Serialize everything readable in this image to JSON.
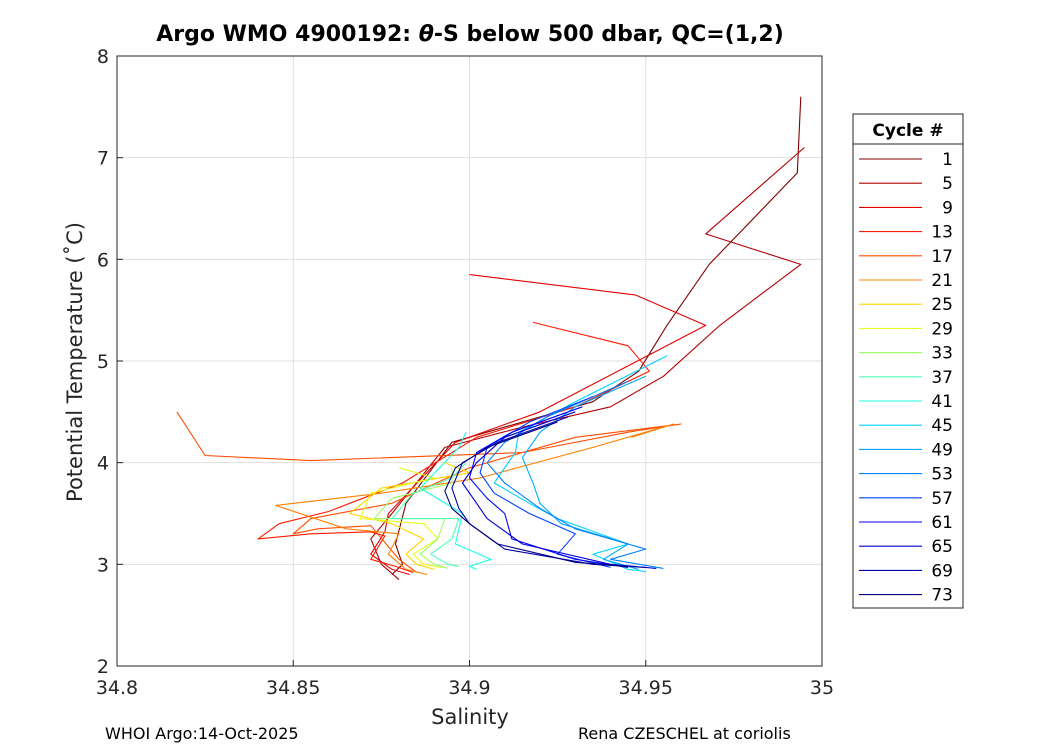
{
  "chart_data": {
    "type": "line",
    "title_prefix": "Argo WMO 4900192: ",
    "title_theta": "θ",
    "title_suffix": "-S below 500 dbar,  QC=(1,2)",
    "xlabel": "Salinity",
    "ylabel": "Potential Temperature (˚C)",
    "xlim": [
      34.8,
      35.0
    ],
    "ylim": [
      2,
      8
    ],
    "xticks": [
      "34.8",
      "34.85",
      "34.9",
      "34.95",
      "35"
    ],
    "xtick_values": [
      34.8,
      34.85,
      34.9,
      34.95,
      35.0
    ],
    "yticks": [
      "2",
      "3",
      "4",
      "5",
      "6",
      "7",
      "8"
    ],
    "ytick_values": [
      2,
      3,
      4,
      5,
      6,
      7,
      8
    ],
    "grid": true,
    "legend": {
      "title": "Cycle #",
      "placement": "right",
      "entries": [
        {
          "label": "1",
          "color": "#800000"
        },
        {
          "label": "5",
          "color": "#b30000"
        },
        {
          "label": "9",
          "color": "#e60000"
        },
        {
          "label": "13",
          "color": "#ff1a00"
        },
        {
          "label": "17",
          "color": "#ff4d00"
        },
        {
          "label": "21",
          "color": "#ff8000"
        },
        {
          "label": "25",
          "color": "#ffd400"
        },
        {
          "label": "29",
          "color": "#e6ff1a"
        },
        {
          "label": "33",
          "color": "#99ff66"
        },
        {
          "label": "37",
          "color": "#4dffb3"
        },
        {
          "label": "41",
          "color": "#1affe6"
        },
        {
          "label": "45",
          "color": "#00d4ff"
        },
        {
          "label": "49",
          "color": "#00aaff"
        },
        {
          "label": "53",
          "color": "#0080ff"
        },
        {
          "label": "57",
          "color": "#0040ff"
        },
        {
          "label": "61",
          "color": "#0000ff"
        },
        {
          "label": "65",
          "color": "#0000d4"
        },
        {
          "label": "69",
          "color": "#0000aa"
        },
        {
          "label": "73",
          "color": "#000080"
        }
      ]
    },
    "series": [
      {
        "name": "1",
        "salinity": [
          34.994,
          34.993,
          34.968,
          34.956,
          34.948,
          34.935,
          34.915,
          34.895,
          34.882,
          34.879,
          34.881,
          34.878
        ],
        "theta": [
          7.6,
          6.85,
          5.95,
          5.35,
          4.9,
          4.6,
          4.4,
          4.2,
          3.6,
          3.2,
          3.0,
          2.9
        ]
      },
      {
        "name": "5",
        "salinity": [
          34.995,
          34.967,
          34.994,
          34.971,
          34.955,
          34.94,
          34.915,
          34.893,
          34.878,
          34.872,
          34.875,
          34.88
        ],
        "theta": [
          7.1,
          6.25,
          5.95,
          5.35,
          4.85,
          4.55,
          4.35,
          4.15,
          3.5,
          3.25,
          3.0,
          2.85
        ]
      },
      {
        "name": "9",
        "salinity": [
          34.9,
          34.947,
          34.967,
          34.92,
          34.896,
          34.877,
          34.876,
          34.872,
          34.878,
          34.883
        ],
        "theta": [
          5.85,
          5.65,
          5.35,
          4.5,
          4.2,
          3.5,
          3.32,
          3.1,
          2.95,
          2.9
        ]
      },
      {
        "name": "13",
        "salinity": [
          34.918,
          34.945,
          34.951,
          34.93,
          34.902,
          34.881,
          34.86,
          34.846,
          34.84,
          34.855,
          34.872,
          34.876,
          34.872,
          34.879,
          34.884
        ],
        "theta": [
          5.38,
          5.15,
          4.9,
          4.55,
          4.25,
          3.8,
          3.52,
          3.4,
          3.25,
          3.3,
          3.32,
          3.28,
          3.05,
          2.98,
          2.92
        ]
      },
      {
        "name": "17",
        "salinity": [
          34.817,
          34.825,
          34.855,
          34.915,
          34.945,
          34.96,
          34.93,
          34.9,
          34.878,
          34.855,
          34.85,
          34.857,
          34.872,
          34.88,
          34.885
        ],
        "theta": [
          4.5,
          4.07,
          4.02,
          4.1,
          4.3,
          4.38,
          4.25,
          3.95,
          3.6,
          3.45,
          3.3,
          3.35,
          3.38,
          3.05,
          2.92
        ]
      },
      {
        "name": "21",
        "salinity": [
          34.946,
          34.958,
          34.935,
          34.903,
          34.875,
          34.845,
          34.865,
          34.88,
          34.877,
          34.882,
          34.888
        ],
        "theta": [
          4.25,
          4.38,
          4.15,
          3.85,
          3.7,
          3.58,
          3.35,
          3.3,
          3.1,
          2.95,
          2.9
        ]
      },
      {
        "name": "25",
        "salinity": [
          34.893,
          34.9,
          34.875,
          34.866,
          34.878,
          34.887,
          34.882,
          34.885,
          34.89
        ],
        "theta": [
          4.0,
          3.9,
          3.75,
          3.5,
          3.4,
          3.25,
          3.1,
          3.0,
          2.95
        ]
      },
      {
        "name": "29",
        "salinity": [
          34.88,
          34.89,
          34.872,
          34.869,
          34.887,
          34.891,
          34.884,
          34.887,
          34.892
        ],
        "theta": [
          3.95,
          3.85,
          3.7,
          3.45,
          3.4,
          3.25,
          3.1,
          3.0,
          2.97
        ]
      },
      {
        "name": "33",
        "salinity": [
          34.895,
          34.895,
          34.878,
          34.873,
          34.893,
          34.891,
          34.886,
          34.89,
          34.894
        ],
        "theta": [
          3.95,
          3.8,
          3.65,
          3.45,
          3.45,
          3.25,
          3.1,
          3.0,
          2.96
        ]
      },
      {
        "name": "37",
        "salinity": [
          34.899,
          34.895,
          34.884,
          34.878,
          34.897,
          34.895,
          34.889,
          34.894,
          34.897
        ],
        "theta": [
          4.0,
          3.85,
          3.7,
          3.45,
          3.45,
          3.25,
          3.1,
          3.0,
          2.98
        ]
      },
      {
        "name": "41",
        "salinity": [
          34.899,
          34.897,
          34.886,
          34.898,
          34.896,
          34.906,
          34.9,
          34.902
        ],
        "theta": [
          4.3,
          4.15,
          3.75,
          3.5,
          3.2,
          3.05,
          2.98,
          2.95
        ]
      },
      {
        "name": "45",
        "salinity": [
          34.956,
          34.93,
          34.914,
          34.913,
          34.907,
          34.917,
          34.925,
          34.945,
          34.935,
          34.945,
          34.95
        ],
        "theta": [
          5.05,
          4.6,
          4.3,
          4.1,
          3.8,
          3.6,
          3.45,
          3.2,
          3.1,
          2.95,
          2.93
        ]
      },
      {
        "name": "49",
        "salinity": [
          34.95,
          34.93,
          34.92,
          34.915,
          34.918,
          34.92,
          34.926,
          34.945,
          34.938,
          34.948
        ],
        "theta": [
          4.85,
          4.55,
          4.3,
          4.05,
          3.8,
          3.6,
          3.4,
          3.2,
          3.05,
          2.95
        ]
      },
      {
        "name": "53",
        "salinity": [
          34.945,
          34.922,
          34.91,
          34.905,
          34.91,
          34.92,
          34.93,
          34.95,
          34.94,
          34.955
        ],
        "theta": [
          4.8,
          4.45,
          4.2,
          4.0,
          3.8,
          3.55,
          3.35,
          3.15,
          3.05,
          2.96
        ]
      },
      {
        "name": "57",
        "salinity": [
          34.935,
          34.917,
          34.905,
          34.903,
          34.907,
          34.917,
          34.93,
          34.925,
          34.94
        ],
        "theta": [
          4.65,
          4.4,
          4.15,
          3.9,
          3.7,
          3.5,
          3.3,
          3.1,
          2.97
        ]
      },
      {
        "name": "61",
        "salinity": [
          34.932,
          34.912,
          34.902,
          34.9,
          34.905,
          34.91,
          34.912,
          34.93,
          34.945
        ],
        "theta": [
          4.55,
          4.3,
          4.1,
          3.85,
          3.65,
          3.5,
          3.25,
          3.05,
          2.97
        ]
      },
      {
        "name": "65",
        "salinity": [
          34.93,
          34.91,
          34.902,
          34.898,
          34.902,
          34.905,
          34.915,
          34.94,
          34.953
        ],
        "theta": [
          4.5,
          4.25,
          4.0,
          3.8,
          3.6,
          3.45,
          3.2,
          3.0,
          2.96
        ]
      },
      {
        "name": "69",
        "salinity": [
          34.928,
          34.908,
          34.898,
          34.895,
          34.897,
          34.9,
          34.91,
          34.935,
          34.95
        ],
        "theta": [
          4.45,
          4.2,
          4.0,
          3.75,
          3.55,
          3.4,
          3.15,
          3.0,
          2.97
        ]
      },
      {
        "name": "73",
        "salinity": [
          34.925,
          34.905,
          34.896,
          34.893,
          34.895,
          34.9,
          34.908,
          34.93,
          34.945
        ],
        "theta": [
          4.4,
          4.15,
          3.95,
          3.72,
          3.55,
          3.4,
          3.2,
          3.02,
          2.98
        ]
      }
    ]
  },
  "footer": {
    "left": "WHOI Argo:14-Oct-2025",
    "right": "Rena CZESCHEL at coriolis"
  }
}
